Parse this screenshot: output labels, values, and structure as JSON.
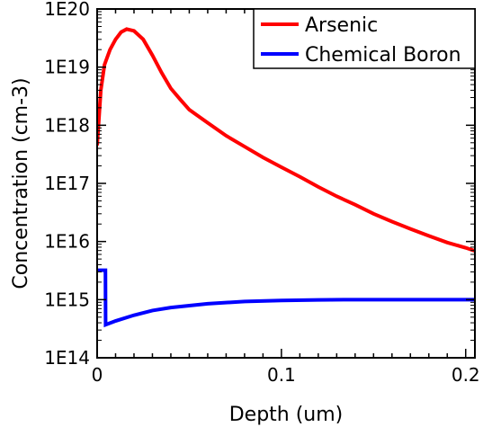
{
  "chart_data": {
    "type": "line",
    "title": "",
    "xlabel": "Depth (um)",
    "ylabel": "Concentration (cm-3)",
    "xlim": [
      0,
      0.205
    ],
    "ylim": [
      100000000000000.0,
      1e+20
    ],
    "yscale": "log",
    "grid": false,
    "legend_position": "top-right",
    "x_ticks": [
      {
        "value": 0,
        "label": "0"
      },
      {
        "value": 0.1,
        "label": "0.1"
      },
      {
        "value": 0.2,
        "label": "0.2"
      }
    ],
    "y_ticks": [
      {
        "value": 100000000000000.0,
        "label": "1E14"
      },
      {
        "value": 1000000000000000.0,
        "label": "1E15"
      },
      {
        "value": 1e+16,
        "label": "1E16"
      },
      {
        "value": 1e+17,
        "label": "1E17"
      },
      {
        "value": 1e+18,
        "label": "1E18"
      },
      {
        "value": 1e+19,
        "label": "1E19"
      },
      {
        "value": 1e+20,
        "label": "1E20"
      }
    ],
    "series": [
      {
        "name": "Arsenic",
        "color": "#ff0000",
        "x": [
          0,
          0.002,
          0.004,
          0.007,
          0.01,
          0.013,
          0.016,
          0.02,
          0.025,
          0.03,
          0.035,
          0.04,
          0.045,
          0.05,
          0.06,
          0.07,
          0.08,
          0.09,
          0.1,
          0.11,
          0.12,
          0.13,
          0.14,
          0.15,
          0.16,
          0.17,
          0.18,
          0.19,
          0.2,
          0.205
        ],
        "y": [
          4.5e+17,
          4e+18,
          1.1e+19,
          2e+19,
          3e+19,
          4e+19,
          4.5e+19,
          4.2e+19,
          3e+19,
          1.6e+19,
          8e+18,
          4.3e+18,
          2.8e+18,
          1.85e+18,
          1.1e+18,
          6.6e+17,
          4.3e+17,
          2.8e+17,
          1.9e+17,
          1.3e+17,
          8.7e+16,
          6e+16,
          4.3e+16,
          3e+16,
          2.2e+16,
          1.65e+16,
          1.25e+16,
          9600000000000000.0,
          7800000000000000.0,
          6900000000000000.0
        ]
      },
      {
        "name": "Chemical Boron",
        "color": "#0000ff",
        "x": [
          0,
          0.0045,
          0.0046,
          0.01,
          0.02,
          0.03,
          0.04,
          0.05,
          0.06,
          0.08,
          0.1,
          0.12,
          0.14,
          0.16,
          0.18,
          0.2,
          0.205
        ],
        "y": [
          3200000000000000.0,
          3200000000000000.0,
          370000000000000.0,
          430000000000000.0,
          540000000000000.0,
          650000000000000.0,
          730000000000000.0,
          790000000000000.0,
          850000000000000.0,
          930000000000000.0,
          970000000000000.0,
          990000000000000.0,
          1000000000000000.0,
          1000000000000000.0,
          1000000000000000.0,
          1000000000000000.0,
          1000000000000000.0
        ]
      }
    ]
  }
}
